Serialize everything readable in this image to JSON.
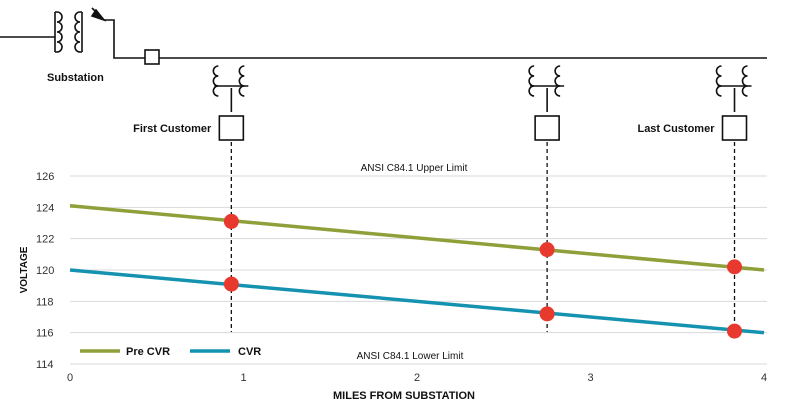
{
  "chart_data": {
    "type": "line",
    "xlabel": "MILES FROM SUBSTATION",
    "ylabel": "VOLTAGE",
    "xlim": [
      0,
      4
    ],
    "ylim": [
      114,
      127
    ],
    "x_ticks": [
      0,
      1,
      2,
      3,
      4
    ],
    "y_ticks": [
      114,
      116,
      118,
      120,
      122,
      124,
      126
    ],
    "grid": "horizontal",
    "legend_position": "bottom-left",
    "series": [
      {
        "name": "Pre CVR",
        "color": "#8fa03a",
        "x": [
          0,
          4
        ],
        "y": [
          124.1,
          120.0
        ],
        "markers": [
          {
            "x": 0.93,
            "y": 123.1
          },
          {
            "x": 2.75,
            "y": 121.3
          },
          {
            "x": 3.83,
            "y": 120.2
          }
        ]
      },
      {
        "name": "CVR",
        "color": "#1592b0",
        "x": [
          0,
          4
        ],
        "y": [
          120.0,
          116.0
        ],
        "markers": [
          {
            "x": 0.93,
            "y": 119.1
          },
          {
            "x": 2.75,
            "y": 117.2
          },
          {
            "x": 3.83,
            "y": 116.1
          }
        ]
      }
    ],
    "marker_color": "#e8392f",
    "annotations": [
      {
        "text": "ANSI C84.1 Upper Limit",
        "position": "above plot"
      },
      {
        "text": "ANSI C84.1 Lower Limit",
        "position": "bottom center"
      }
    ]
  },
  "diagram": {
    "substation_label": "Substation",
    "customers": [
      {
        "label": "First Customer",
        "mile": 0.93
      },
      {
        "label": "",
        "mile": 2.75
      },
      {
        "label": "Last Customer",
        "mile": 3.83
      }
    ]
  }
}
